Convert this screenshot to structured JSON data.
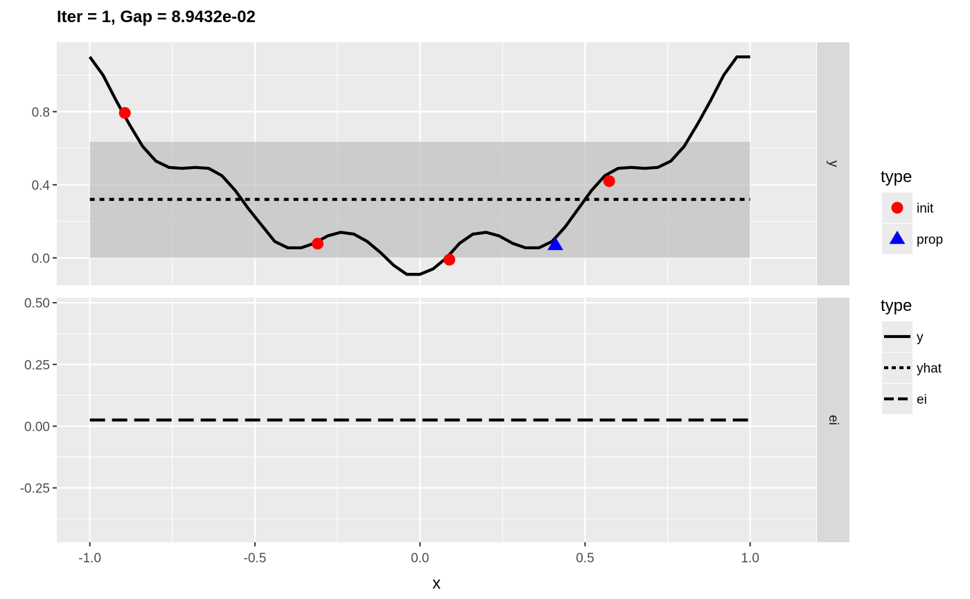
{
  "chart_data": {
    "type": "line",
    "title": "Iter = 1, Gap = 8.9432e-02",
    "xlabel": "x",
    "xlim": [
      -1.1,
      1.2
    ],
    "x_ticks": [
      -1.0,
      -0.5,
      0.0,
      0.5,
      1.0
    ],
    "x_tick_labels": [
      "-1.0",
      "-0.5",
      "0.0",
      "0.5",
      "1.0"
    ],
    "grid": true,
    "legend_position": "right",
    "panels": [
      {
        "strip": "y",
        "ylim": [
          -0.15,
          1.18
        ],
        "y_ticks": [
          0.0,
          0.4,
          0.8
        ],
        "y_tick_labels": [
          "0.0",
          "0.4",
          "0.8"
        ],
        "y_minor": [
          0.2,
          0.6,
          1.0
        ],
        "band": {
          "x": [
            -1.0,
            1.0
          ],
          "ymin": 0.0,
          "ymax": 0.635
        },
        "series": [
          {
            "name": "y",
            "style": "solid",
            "x": [
              -1.0,
              -0.96,
              -0.92,
              -0.88,
              -0.84,
              -0.8,
              -0.76,
              -0.72,
              -0.68,
              -0.64,
              -0.6,
              -0.56,
              -0.52,
              -0.48,
              -0.44,
              -0.4,
              -0.36,
              -0.32,
              -0.28,
              -0.24,
              -0.2,
              -0.16,
              -0.12,
              -0.08,
              -0.04,
              0.0,
              0.04,
              0.08,
              0.12,
              0.16,
              0.2,
              0.24,
              0.28,
              0.32,
              0.36,
              0.4,
              0.44,
              0.48,
              0.52,
              0.56,
              0.6,
              0.64,
              0.68,
              0.72,
              0.76,
              0.8,
              0.84,
              0.88,
              0.92,
              0.96,
              1.0
            ],
            "y": [
              1.1,
              1.0,
              0.86,
              0.73,
              0.61,
              0.53,
              0.495,
              0.49,
              0.495,
              0.49,
              0.45,
              0.37,
              0.27,
              0.18,
              0.09,
              0.055,
              0.055,
              0.08,
              0.12,
              0.14,
              0.13,
              0.09,
              0.03,
              -0.04,
              -0.09,
              -0.09,
              -0.06,
              0.0,
              0.08,
              0.13,
              0.14,
              0.12,
              0.08,
              0.055,
              0.055,
              0.09,
              0.17,
              0.27,
              0.37,
              0.45,
              0.49,
              0.495,
              0.49,
              0.495,
              0.53,
              0.61,
              0.73,
              0.86,
              1.0,
              1.1,
              1.1
            ]
          },
          {
            "name": "yhat",
            "style": "dotted",
            "x": [
              -1.0,
              1.0
            ],
            "y": [
              0.32,
              0.32
            ]
          }
        ],
        "points": [
          {
            "type": "init",
            "x": -0.894,
            "y": 0.793
          },
          {
            "type": "init",
            "x": -0.31,
            "y": 0.078
          },
          {
            "type": "init",
            "x": 0.089,
            "y": -0.01
          },
          {
            "type": "init",
            "x": 0.573,
            "y": 0.42
          },
          {
            "type": "prop",
            "x": 0.41,
            "y": 0.07
          }
        ]
      },
      {
        "strip": "ei",
        "ylim": [
          -0.47,
          0.52
        ],
        "y_ticks": [
          -0.25,
          0.0,
          0.25,
          0.5
        ],
        "y_tick_labels": [
          "-0.25",
          "0.00",
          "0.25",
          "0.50"
        ],
        "y_minor": [
          -0.375,
          -0.125,
          0.125,
          0.375
        ],
        "series": [
          {
            "name": "ei",
            "style": "dashed",
            "x": [
              -1.0,
              1.0
            ],
            "y": [
              0.025,
              0.025
            ]
          }
        ]
      }
    ],
    "legends": [
      {
        "title": "type",
        "entries": [
          {
            "label": "init",
            "shape": "circle",
            "color": "#ff0000"
          },
          {
            "label": "prop",
            "shape": "triangle",
            "color": "#0000ff"
          }
        ]
      },
      {
        "title": "type",
        "entries": [
          {
            "label": "y",
            "style": "solid"
          },
          {
            "label": "yhat",
            "style": "dotted"
          },
          {
            "label": "ei",
            "style": "dashed"
          }
        ]
      }
    ],
    "colors": {
      "panel_bg": "#ebebeb",
      "grid": "#ffffff",
      "strip_bg": "#d9d9d9",
      "band": "#bfbfbf",
      "line": "#000000",
      "init": "#ff0000",
      "prop": "#0000ff"
    }
  }
}
